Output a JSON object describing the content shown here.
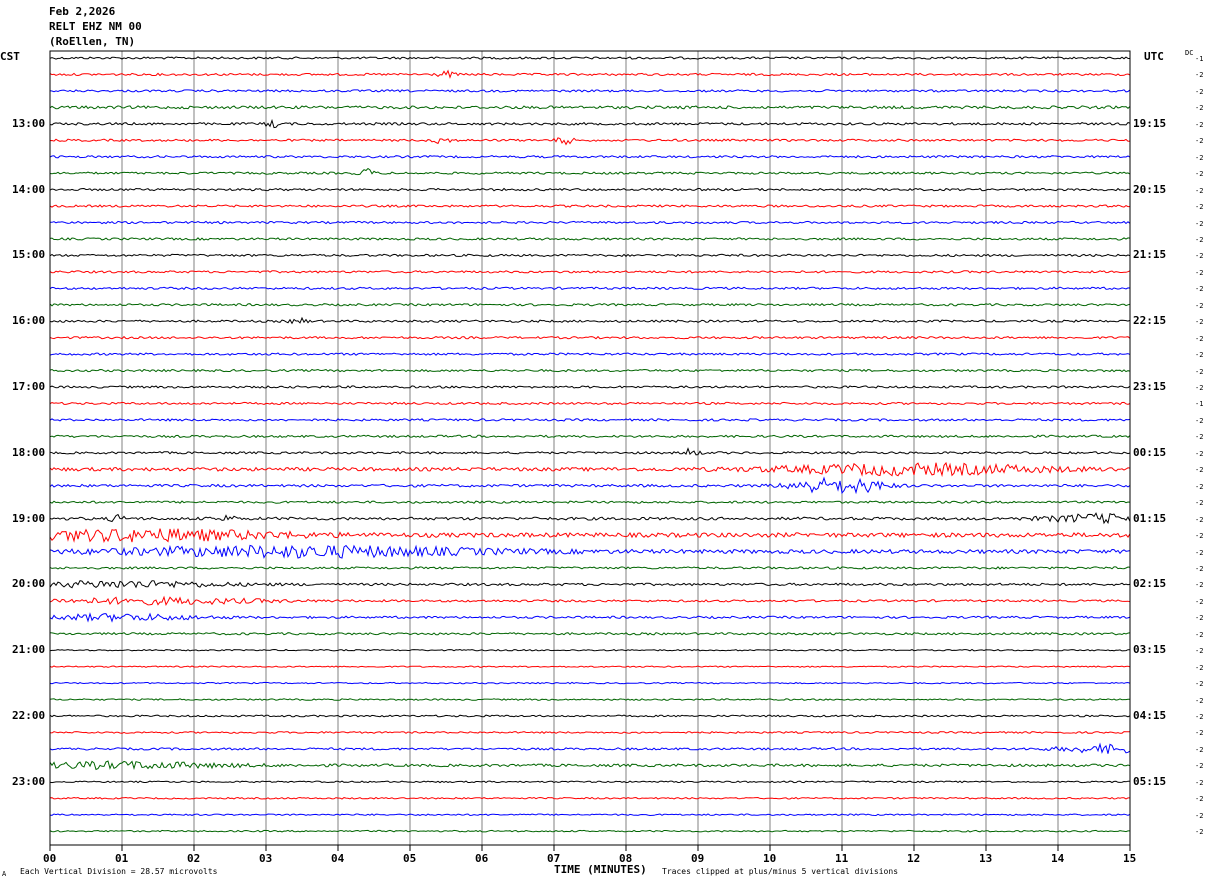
{
  "header": {
    "date": "Feb 2,2026",
    "station": "RELT EHZ NM 00",
    "location": "(RoEllen, TN)",
    "left_tz": "CST",
    "right_tz": "UTC",
    "dc_label": "DC"
  },
  "footer": {
    "scale_note": "Each Vertical Division =   28.57 microvolts",
    "clip_note": "Traces clipped at plus/minus 5 vertical divisions",
    "watermark": "A"
  },
  "colors": {
    "trace_cycle": [
      "#000000",
      "#ff0000",
      "#0000ff",
      "#006400"
    ],
    "grid": "#808080"
  },
  "chart_data": {
    "type": "line",
    "title": "RELT EHZ NM 00",
    "xlabel": "TIME (MINUTES)",
    "xlim": [
      0,
      15
    ],
    "x_ticks": [
      "00",
      "01",
      "02",
      "03",
      "04",
      "05",
      "06",
      "07",
      "08",
      "09",
      "10",
      "11",
      "12",
      "13",
      "14",
      "15"
    ],
    "grid": true,
    "row_count": 48,
    "left_hour_labels": [
      {
        "row": 4,
        "text": "13:00"
      },
      {
        "row": 8,
        "text": "14:00"
      },
      {
        "row": 12,
        "text": "15:00"
      },
      {
        "row": 16,
        "text": "16:00"
      },
      {
        "row": 20,
        "text": "17:00"
      },
      {
        "row": 24,
        "text": "18:00"
      },
      {
        "row": 28,
        "text": "19:00"
      },
      {
        "row": 32,
        "text": "20:00"
      },
      {
        "row": 36,
        "text": "21:00"
      },
      {
        "row": 40,
        "text": "22:00"
      },
      {
        "row": 44,
        "text": "23:00"
      }
    ],
    "right_hour_labels": [
      {
        "row": 4,
        "text": "19:15"
      },
      {
        "row": 8,
        "text": "20:15"
      },
      {
        "row": 12,
        "text": "21:15"
      },
      {
        "row": 16,
        "text": "22:15"
      },
      {
        "row": 20,
        "text": "23:15"
      },
      {
        "row": 24,
        "text": "00:15"
      },
      {
        "row": 28,
        "text": "01:15"
      },
      {
        "row": 32,
        "text": "02:15"
      },
      {
        "row": 36,
        "text": "03:15"
      },
      {
        "row": 40,
        "text": "04:15"
      },
      {
        "row": 44,
        "text": "05:15"
      }
    ],
    "dc_offsets": [
      "-1",
      "-2",
      "-2",
      "-2",
      "-2",
      "-2",
      "-2",
      "-2",
      "-2",
      "-2",
      "-2",
      "-2",
      "-2",
      "-2",
      "-2",
      "-2",
      "-2",
      "-2",
      "-2",
      "-2",
      "-2",
      "-1",
      "-2",
      "-2",
      "-2",
      "-2",
      "-2",
      "-2",
      "-2",
      "-2",
      "-2",
      "-2",
      "-2",
      "-2",
      "-2",
      "-2",
      "-2",
      "-2",
      "-2",
      "-2",
      "-2",
      "-2",
      "-2",
      "-2",
      "-2",
      "-2",
      "-2",
      "-2"
    ],
    "noise_level": [
      1.0,
      1.0,
      1.0,
      1.3,
      1.1,
      1.0,
      1.0,
      1.0,
      1.0,
      1.0,
      1.0,
      1.0,
      1.0,
      1.0,
      1.0,
      1.0,
      1.0,
      1.0,
      1.0,
      1.0,
      1.0,
      1.0,
      1.0,
      1.0,
      1.0,
      1.6,
      1.2,
      1.0,
      1.3,
      2.0,
      1.8,
      1.0,
      1.1,
      1.0,
      1.0,
      1.0,
      0.6,
      0.6,
      0.6,
      0.7,
      0.8,
      0.8,
      1.0,
      1.2,
      0.7,
      0.7,
      0.7,
      0.7
    ],
    "events": [
      {
        "row": 1,
        "t": 5.5,
        "amp": 3
      },
      {
        "row": 4,
        "t": 3.1,
        "amp": 3
      },
      {
        "row": 5,
        "t": 5.45,
        "amp": 4
      },
      {
        "row": 5,
        "t": 7.15,
        "amp": 4
      },
      {
        "row": 7,
        "t": 4.4,
        "amp": 4
      },
      {
        "row": 16,
        "t": 3.45,
        "amp": 3
      },
      {
        "row": 24,
        "t": 8.9,
        "amp": 4
      },
      {
        "row": 25,
        "t": 12.0,
        "amp": 5,
        "width": 2.6
      },
      {
        "row": 26,
        "t": 10.7,
        "amp": 7,
        "width": 0.6
      },
      {
        "row": 26,
        "t": 11.3,
        "amp": 5,
        "width": 0.5
      },
      {
        "row": 28,
        "t": 0.95,
        "amp": 3
      },
      {
        "row": 28,
        "t": 2.45,
        "amp": 3
      },
      {
        "row": 28,
        "t": 14.6,
        "amp": 4,
        "width": 1.0
      },
      {
        "row": 29,
        "t": 1.3,
        "amp": 5,
        "width": 2.6
      },
      {
        "row": 30,
        "t": 3.5,
        "amp": 5,
        "width": 3.5
      },
      {
        "row": 32,
        "t": 1.0,
        "amp": 3,
        "width": 2.0
      },
      {
        "row": 33,
        "t": 1.5,
        "amp": 3,
        "width": 2.0
      },
      {
        "row": 34,
        "t": 1.0,
        "amp": 3,
        "width": 1.5
      },
      {
        "row": 42,
        "t": 14.8,
        "amp": 4,
        "width": 1.0
      },
      {
        "row": 43,
        "t": 1.0,
        "amp": 3,
        "width": 2.0
      }
    ]
  }
}
